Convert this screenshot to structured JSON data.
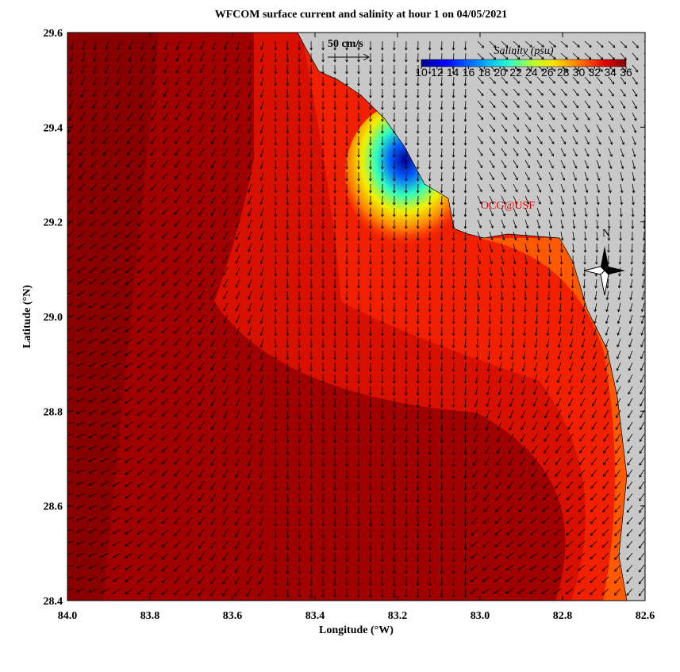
{
  "chart_data": {
    "type": "map",
    "title": "WFCOM surface current and salinity at hour 1 on 04/05/2021",
    "x_label": "Longitude (°W)",
    "y_label": "Latitude (°N)",
    "xlim": [
      84,
      82.6
    ],
    "xticks": [
      {
        "value": 84,
        "label": "84.0"
      },
      83.8,
      83.6,
      83.4,
      83.2,
      {
        "value": 83,
        "label": "83.0"
      },
      82.8,
      82.6
    ],
    "ylim": [
      28.4,
      29.6
    ],
    "yticks": [
      28.4,
      28.6,
      28.8,
      {
        "value": 29,
        "label": "29.0"
      },
      29.2,
      29.4,
      29.6
    ],
    "colorbar": {
      "title": "Salinity (psu)",
      "lim": [
        10,
        36
      ],
      "ticks": [
        10,
        12,
        14,
        16,
        18,
        20,
        22,
        24,
        26,
        28,
        30,
        32,
        34,
        36
      ]
    },
    "scale_label": "50 cm/s",
    "credit": "OCG@USF",
    "compass_label": "N"
  }
}
